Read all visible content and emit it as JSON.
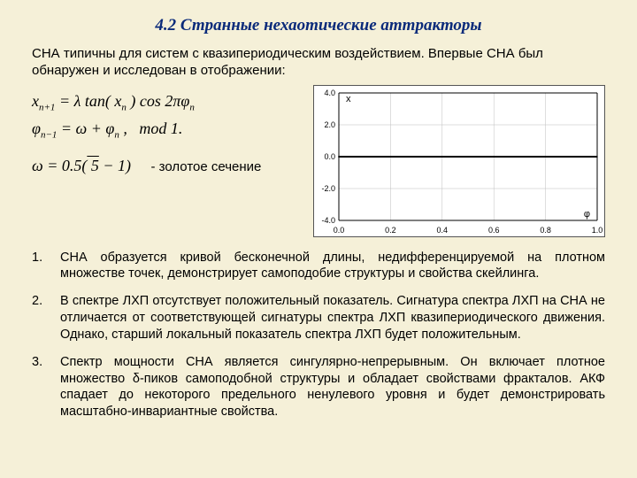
{
  "title": "4.2 Странные нехаотические аттракторы",
  "intro": "СНА типичны для систем с квазипериодическим воздействием. Впервые СНА был обнаружен и исследован в отображении:",
  "eq1": "xₙ₊₁ = λ tan( xₙ ) cos 2πφₙ",
  "eq2": "φₙ₋₁ = ω + φₙ ,   mod 1.",
  "eq3_lhs": "ω = 0.5(√5 − 1)",
  "eq3_rhs": "-  золотое сечение",
  "items": [
    "СНА образуется кривой бесконечной длины, недифференцируемой на плотном множестве точек, демонстрирует самоподобие структуры и свойства скейлинга.",
    "В спектре ЛХП отсутствует положительный показатель. Сигнатура спектра ЛХП на СНА не отличается от соответствующей сигнатуры спектра ЛХП квазипериодического движения. Однако, старший локальный показатель спектра ЛХП будет положительным.",
    "Спектр мощности СНА является сингулярно-непрерывным. Он включает плотное множество δ-пиков самоподобной структуры и обладает свойствами фракталов. АКФ спадает до некоторого предельного ненулевого уровня и будет демонстрировать масштабно-инвариантные свойства."
  ],
  "chart": {
    "xmin": 0.0,
    "xmax": 1.0,
    "ymin": -4.0,
    "ymax": 4.0,
    "xticks": [
      0.0,
      0.2,
      0.4,
      0.6,
      0.8,
      1.0
    ],
    "yticks": [
      -4.0,
      -2.0,
      0.0,
      2.0,
      4.0
    ],
    "xlabel": "φ",
    "ylabel": "x",
    "lambda": 1.5,
    "omega": 0.6180339887,
    "n_iter": 2200,
    "grid_color": "#bdbdbd",
    "axis_color": "#000000",
    "dot_color": "#000000",
    "background": "#ffffff",
    "tick_font": 9
  }
}
